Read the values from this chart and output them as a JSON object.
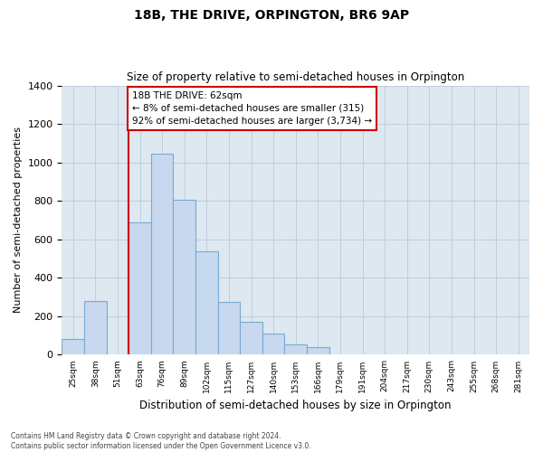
{
  "title": "18B, THE DRIVE, ORPINGTON, BR6 9AP",
  "subtitle": "Size of property relative to semi-detached houses in Orpington",
  "xlabel": "Distribution of semi-detached houses by size in Orpington",
  "ylabel": "Number of semi-detached properties",
  "footnote1": "Contains HM Land Registry data © Crown copyright and database right 2024.",
  "footnote2": "Contains public sector information licensed under the Open Government Licence v3.0.",
  "bin_labels": [
    "25sqm",
    "38sqm",
    "51sqm",
    "63sqm",
    "76sqm",
    "89sqm",
    "102sqm",
    "115sqm",
    "127sqm",
    "140sqm",
    "153sqm",
    "166sqm",
    "179sqm",
    "191sqm",
    "204sqm",
    "217sqm",
    "230sqm",
    "243sqm",
    "255sqm",
    "268sqm",
    "281sqm"
  ],
  "bar_values": [
    80,
    280,
    0,
    690,
    1045,
    805,
    540,
    275,
    170,
    110,
    55,
    38,
    0,
    0,
    0,
    0,
    0,
    0,
    0,
    0,
    0
  ],
  "bar_color": "#c8d8ee",
  "bar_edge_color": "#7aaad0",
  "annotation_line1": "18B THE DRIVE: 62sqm",
  "annotation_line2": "← 8% of semi-detached houses are smaller (315)",
  "annotation_line3": "92% of semi-detached houses are larger (3,734) →",
  "annotation_box_color": "#ffffff",
  "annotation_box_edge_color": "#cc0000",
  "marker_line_index": 3,
  "ylim": [
    0,
    1400
  ],
  "yticks": [
    0,
    200,
    400,
    600,
    800,
    1000,
    1200,
    1400
  ],
  "plot_bg_color": "#dde8f0",
  "background_color": "#ffffff",
  "grid_color": "#c0cedd"
}
